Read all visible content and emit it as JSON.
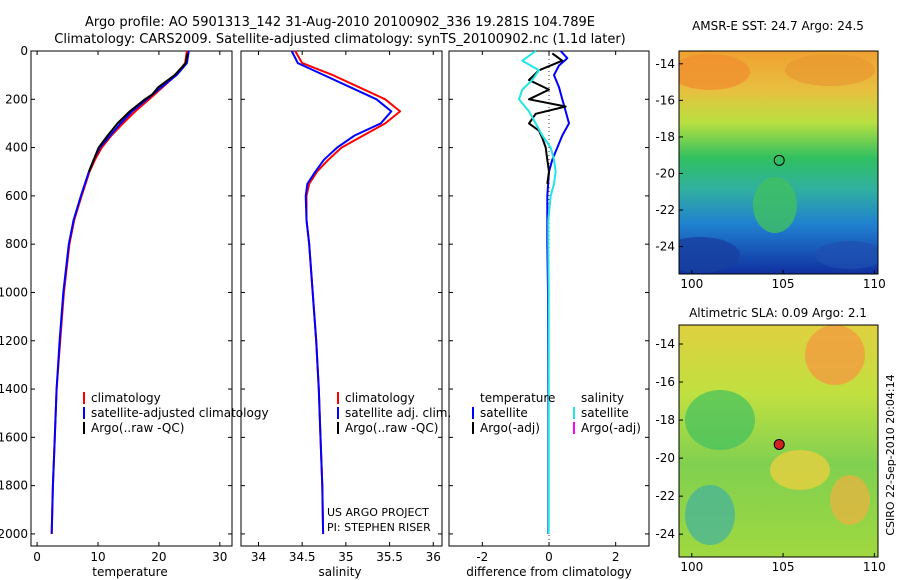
{
  "header": {
    "line1": "Argo profile: AO 5901313_142 31-Aug-2010 20100902_336 19.281S 104.789E",
    "line2": "Climatology: CARS2009. Satellite-adjusted climatology: synTS_20100902.nc (1.1d later)"
  },
  "colors": {
    "climatology": "#ff0000",
    "satellite": "#0000ff",
    "argo": "#000000",
    "salinity_satellite": "#22e5e5",
    "salinity_argo": "#ff00ff"
  },
  "chart_data": [
    {
      "type": "line",
      "id": "temperature",
      "xlabel": "temperature",
      "ylabel": "",
      "xlim": [
        -1,
        32
      ],
      "ylim": [
        2050,
        0
      ],
      "xticks": [
        0,
        10,
        20,
        30
      ],
      "yticks": [
        0,
        200,
        400,
        600,
        800,
        1000,
        1200,
        1400,
        1600,
        1800,
        2000
      ],
      "legend": [
        "climatology",
        "satellite-adjusted climatology",
        "Argo(..raw -QC)"
      ],
      "series": [
        {
          "name": "climatology",
          "color": "#ff0000",
          "depth": [
            0,
            50,
            100,
            150,
            200,
            250,
            300,
            350,
            400,
            450,
            500,
            600,
            700,
            800,
            1000,
            1200,
            1400,
            1600,
            1800,
            2000
          ],
          "values": [
            24.6,
            24.3,
            22.8,
            20.6,
            18.4,
            16.1,
            14.1,
            12.2,
            10.6,
            9.5,
            8.6,
            7.3,
            6.1,
            5.3,
            4.4,
            3.8,
            3.2,
            2.9,
            2.6,
            2.4
          ]
        },
        {
          "name": "satellite-adjusted climatology",
          "color": "#0000ff",
          "depth": [
            0,
            50,
            100,
            150,
            200,
            250,
            300,
            350,
            400,
            450,
            500,
            600,
            700,
            800,
            1000,
            1200,
            1400,
            1600,
            1800,
            2000
          ],
          "values": [
            24.9,
            24.6,
            22.9,
            20.4,
            18.0,
            15.6,
            13.7,
            12.0,
            10.3,
            9.3,
            8.5,
            7.2,
            6.0,
            5.2,
            4.3,
            3.7,
            3.2,
            2.9,
            2.6,
            2.4
          ]
        },
        {
          "name": "Argo(..raw -QC)",
          "color": "#000000",
          "depth": [
            10,
            50,
            100,
            150,
            180,
            200,
            250,
            300,
            350,
            400,
            450,
            500
          ],
          "values": [
            24.7,
            24.4,
            22.6,
            19.9,
            18.9,
            17.7,
            15.2,
            13.2,
            11.6,
            10.1,
            9.3,
            8.5
          ]
        }
      ]
    },
    {
      "type": "line",
      "id": "salinity",
      "xlabel": "salinity",
      "ylabel": "",
      "xlim": [
        33.8,
        36.1
      ],
      "ylim": [
        2050,
        0
      ],
      "xticks": [
        34,
        34.5,
        35,
        35.5,
        36
      ],
      "legend": [
        "climatology",
        "satellite adj. clim.",
        "Argo(..raw -QC)"
      ],
      "annotation": [
        "US ARGO PROJECT",
        "PI: STEPHEN RISER"
      ],
      "series": [
        {
          "name": "climatology",
          "color": "#ff0000",
          "depth": [
            0,
            50,
            100,
            150,
            200,
            250,
            300,
            350,
            400,
            450,
            500,
            550,
            600,
            700,
            800,
            1000,
            1200,
            1400,
            1600,
            1800,
            2000
          ],
          "values": [
            34.42,
            34.5,
            34.85,
            35.15,
            35.45,
            35.62,
            35.45,
            35.2,
            34.95,
            34.8,
            34.67,
            34.58,
            34.55,
            34.55,
            34.58,
            34.62,
            34.66,
            34.69,
            34.71,
            34.73,
            34.74
          ]
        },
        {
          "name": "satellite adj. clim.",
          "color": "#0000ff",
          "depth": [
            0,
            50,
            100,
            150,
            200,
            250,
            300,
            350,
            400,
            450,
            500,
            550,
            600,
            700,
            800,
            1000,
            1200,
            1400,
            1600,
            1800,
            2000
          ],
          "values": [
            34.38,
            34.45,
            34.75,
            35.05,
            35.35,
            35.52,
            35.4,
            35.1,
            34.9,
            34.75,
            34.65,
            34.56,
            34.54,
            34.55,
            34.58,
            34.62,
            34.66,
            34.69,
            34.71,
            34.73,
            34.74
          ]
        }
      ]
    },
    {
      "type": "line",
      "id": "difference",
      "xlabel": "difference from climatology",
      "ylabel": "",
      "xlim": [
        -3,
        3
      ],
      "ylim": [
        2050,
        0
      ],
      "xticks": [
        -2,
        0,
        2
      ],
      "legend_temperature_title": "temperature",
      "legend_salinity_title": "salinity",
      "legend": [
        "satellite",
        "Argo(-adj)",
        "satellite",
        "Argo(-adj)"
      ],
      "series": [
        {
          "name": "temperature satellite",
          "color": "#0000ff",
          "depth": [
            0,
            30,
            60,
            100,
            150,
            200,
            250,
            300,
            350,
            400,
            450,
            500,
            600,
            800,
            1000,
            1500,
            2000
          ],
          "values": [
            0.35,
            0.55,
            0.3,
            0.15,
            0.3,
            0.4,
            0.5,
            0.6,
            0.4,
            0.25,
            0.1,
            0.0,
            -0.05,
            -0.05,
            -0.03,
            -0.02,
            -0.02
          ]
        },
        {
          "name": "temperature Argo(-adj)",
          "color": "#000000",
          "depth": [
            10,
            40,
            80,
            120,
            160,
            200,
            230,
            260,
            300,
            330,
            360,
            400,
            450,
            500,
            550
          ],
          "values": [
            0.1,
            0.4,
            -0.3,
            -0.6,
            0.0,
            -0.6,
            0.5,
            -0.4,
            -0.6,
            -0.3,
            -0.2,
            -0.1,
            -0.05,
            0.0,
            -0.05
          ]
        },
        {
          "name": "salinity satellite",
          "color": "#22e5e5",
          "depth": [
            0,
            40,
            80,
            120,
            160,
            200,
            250,
            300,
            350,
            400,
            450,
            500,
            550,
            600,
            700,
            800,
            1000,
            1500,
            2000
          ],
          "values": [
            -0.4,
            -0.8,
            -0.3,
            -0.5,
            -0.8,
            -0.9,
            -0.6,
            -0.4,
            -0.2,
            0.05,
            0.15,
            0.2,
            0.15,
            0.05,
            -0.02,
            -0.02,
            -0.01,
            -0.01,
            -0.01
          ]
        }
      ]
    },
    {
      "type": "heatmap",
      "id": "sst-map",
      "title": "AMSR-E SST: 24.7 Argo: 24.5",
      "xlim": [
        99.3,
        110.2
      ],
      "ylim": [
        -25.5,
        -13.3
      ],
      "xticks": [
        100,
        105,
        110
      ],
      "yticks": [
        -14,
        -16,
        -18,
        -20,
        -22,
        -24
      ],
      "marker": {
        "lon": 104.789,
        "lat": -19.281
      }
    },
    {
      "type": "heatmap",
      "id": "sla-map",
      "title": "Altimetric SLA: 0.09 Argo: 2.1",
      "xlim": [
        99.3,
        110.2
      ],
      "ylim": [
        -25.2,
        -13.0
      ],
      "xticks": [
        100,
        105,
        110
      ],
      "yticks": [
        -14,
        -16,
        -18,
        -20,
        -22,
        -24
      ],
      "marker": {
        "lon": 104.789,
        "lat": -19.281
      }
    }
  ],
  "footer": {
    "stamp": "CSIRO 22-Sep-2010 20:04:14"
  }
}
